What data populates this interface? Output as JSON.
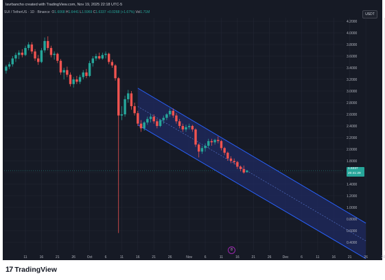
{
  "header": {
    "created_by": "lavrbancho created with TradingView.com, Nov 19, 2025 22:18 UTC-5"
  },
  "legend": {
    "symbol": "SUI / TetherUS · 1D · Binance",
    "open_label": "O",
    "open": "1.6068",
    "high_label": "H",
    "high": "1.6441",
    "low_label": "L",
    "low": "1.5969",
    "close_label": "C",
    "close": "1.6337",
    "change": "+0.0268 (+1.67%)",
    "volume_label": "Vol",
    "volume": "1.71M"
  },
  "currency_button": "USDT",
  "last_price": {
    "price": "1.6337",
    "countdown": "20:41:29"
  },
  "bar_marker": "8",
  "branding": {
    "logo_mark": "17",
    "logo_text": "TradingView"
  },
  "colors": {
    "up": "#26a69a",
    "down": "#ef5350",
    "channel_fill": "#1f2a60",
    "channel_line": "#2962ff",
    "background": "#161a25"
  },
  "chart_data": {
    "type": "candlestick",
    "pair": "SUI/USDT",
    "interval": "1D",
    "ylim": [
      0.3,
      4.3
    ],
    "y_ticks": [
      "4.2000",
      "4.0000",
      "3.8000",
      "3.6000",
      "3.4000",
      "3.2000",
      "3.0000",
      "2.8000",
      "2.6000",
      "2.4000",
      "2.2000",
      "2.0000",
      "1.8000",
      "1.6000",
      "1.4000",
      "1.2000",
      "1.0000",
      "0.8000",
      "0.6000",
      "0.4000"
    ],
    "x_ticks": [
      "11",
      "16",
      "21",
      "26",
      "Oct",
      "6",
      "11",
      "16",
      "21",
      "26",
      "Nov",
      "6",
      "11",
      "16",
      "21",
      "26",
      "Dec",
      "6",
      "11",
      "16",
      "21",
      "26",
      "2026"
    ],
    "x_tick_dates": [
      "2025-09-11",
      "2025-09-16",
      "2025-09-21",
      "2025-09-26",
      "2025-10-01",
      "2025-10-06",
      "2025-10-11",
      "2025-10-16",
      "2025-10-21",
      "2025-10-26",
      "2025-11-01",
      "2025-11-06",
      "2025-11-11",
      "2025-11-16",
      "2025-11-21",
      "2025-11-26",
      "2025-12-01",
      "2025-12-06",
      "2025-12-11",
      "2025-12-16",
      "2025-12-21",
      "2025-12-26",
      "2026-01-01"
    ],
    "candles": [
      {
        "date": "2025-09-05",
        "o": 3.35,
        "h": 3.45,
        "l": 3.3,
        "c": 3.42
      },
      {
        "date": "2025-09-06",
        "o": 3.42,
        "h": 3.5,
        "l": 3.38,
        "c": 3.46
      },
      {
        "date": "2025-09-07",
        "o": 3.46,
        "h": 3.6,
        "l": 3.42,
        "c": 3.56
      },
      {
        "date": "2025-09-08",
        "o": 3.56,
        "h": 3.66,
        "l": 3.5,
        "c": 3.62
      },
      {
        "date": "2025-09-09",
        "o": 3.62,
        "h": 3.7,
        "l": 3.55,
        "c": 3.66
      },
      {
        "date": "2025-09-10",
        "o": 3.66,
        "h": 3.72,
        "l": 3.58,
        "c": 3.62
      },
      {
        "date": "2025-09-11",
        "o": 3.62,
        "h": 3.78,
        "l": 3.6,
        "c": 3.74
      },
      {
        "date": "2025-09-12",
        "o": 3.74,
        "h": 3.84,
        "l": 3.7,
        "c": 3.8
      },
      {
        "date": "2025-09-13",
        "o": 3.8,
        "h": 3.84,
        "l": 3.64,
        "c": 3.68
      },
      {
        "date": "2025-09-14",
        "o": 3.68,
        "h": 3.72,
        "l": 3.52,
        "c": 3.56
      },
      {
        "date": "2025-09-15",
        "o": 3.56,
        "h": 3.62,
        "l": 3.45,
        "c": 3.5
      },
      {
        "date": "2025-09-16",
        "o": 3.5,
        "h": 3.74,
        "l": 3.48,
        "c": 3.7
      },
      {
        "date": "2025-09-17",
        "o": 3.7,
        "h": 3.92,
        "l": 3.66,
        "c": 3.86
      },
      {
        "date": "2025-09-18",
        "o": 3.86,
        "h": 3.94,
        "l": 3.7,
        "c": 3.74
      },
      {
        "date": "2025-09-19",
        "o": 3.74,
        "h": 3.78,
        "l": 3.58,
        "c": 3.62
      },
      {
        "date": "2025-09-20",
        "o": 3.62,
        "h": 3.68,
        "l": 3.54,
        "c": 3.64
      },
      {
        "date": "2025-09-21",
        "o": 3.64,
        "h": 3.66,
        "l": 3.48,
        "c": 3.52
      },
      {
        "date": "2025-09-22",
        "o": 3.52,
        "h": 3.55,
        "l": 3.28,
        "c": 3.32
      },
      {
        "date": "2025-09-23",
        "o": 3.32,
        "h": 3.4,
        "l": 3.2,
        "c": 3.36
      },
      {
        "date": "2025-09-24",
        "o": 3.36,
        "h": 3.42,
        "l": 3.24,
        "c": 3.28
      },
      {
        "date": "2025-09-25",
        "o": 3.28,
        "h": 3.32,
        "l": 3.08,
        "c": 3.12
      },
      {
        "date": "2025-09-26",
        "o": 3.12,
        "h": 3.24,
        "l": 3.06,
        "c": 3.2
      },
      {
        "date": "2025-09-27",
        "o": 3.2,
        "h": 3.26,
        "l": 3.12,
        "c": 3.16
      },
      {
        "date": "2025-09-28",
        "o": 3.16,
        "h": 3.28,
        "l": 3.12,
        "c": 3.24
      },
      {
        "date": "2025-09-29",
        "o": 3.24,
        "h": 3.36,
        "l": 3.2,
        "c": 3.32
      },
      {
        "date": "2025-09-30",
        "o": 3.32,
        "h": 3.38,
        "l": 3.22,
        "c": 3.26
      },
      {
        "date": "2025-10-01",
        "o": 3.26,
        "h": 3.52,
        "l": 3.24,
        "c": 3.48
      },
      {
        "date": "2025-10-02",
        "o": 3.48,
        "h": 3.6,
        "l": 3.42,
        "c": 3.56
      },
      {
        "date": "2025-10-03",
        "o": 3.56,
        "h": 3.64,
        "l": 3.52,
        "c": 3.6
      },
      {
        "date": "2025-10-04",
        "o": 3.6,
        "h": 3.66,
        "l": 3.54,
        "c": 3.56
      },
      {
        "date": "2025-10-05",
        "o": 3.56,
        "h": 3.66,
        "l": 3.54,
        "c": 3.62
      },
      {
        "date": "2025-10-06",
        "o": 3.62,
        "h": 3.68,
        "l": 3.56,
        "c": 3.64
      },
      {
        "date": "2025-10-07",
        "o": 3.64,
        "h": 3.66,
        "l": 3.46,
        "c": 3.5
      },
      {
        "date": "2025-10-08",
        "o": 3.5,
        "h": 3.54,
        "l": 3.4,
        "c": 3.44
      },
      {
        "date": "2025-10-09",
        "o": 3.44,
        "h": 3.46,
        "l": 3.18,
        "c": 3.22
      },
      {
        "date": "2025-10-10",
        "o": 3.22,
        "h": 3.24,
        "l": 0.56,
        "c": 2.58
      },
      {
        "date": "2025-10-11",
        "o": 2.58,
        "h": 2.74,
        "l": 2.5,
        "c": 2.6
      },
      {
        "date": "2025-10-12",
        "o": 2.6,
        "h": 2.92,
        "l": 2.56,
        "c": 2.86
      },
      {
        "date": "2025-10-13",
        "o": 2.86,
        "h": 3.02,
        "l": 2.8,
        "c": 2.96
      },
      {
        "date": "2025-10-14",
        "o": 2.96,
        "h": 3.0,
        "l": 2.68,
        "c": 2.74
      },
      {
        "date": "2025-10-15",
        "o": 2.74,
        "h": 2.8,
        "l": 2.58,
        "c": 2.62
      },
      {
        "date": "2025-10-16",
        "o": 2.62,
        "h": 2.66,
        "l": 2.4,
        "c": 2.44
      },
      {
        "date": "2025-10-17",
        "o": 2.44,
        "h": 2.5,
        "l": 2.3,
        "c": 2.36
      },
      {
        "date": "2025-10-18",
        "o": 2.36,
        "h": 2.48,
        "l": 2.32,
        "c": 2.46
      },
      {
        "date": "2025-10-19",
        "o": 2.46,
        "h": 2.56,
        "l": 2.42,
        "c": 2.52
      },
      {
        "date": "2025-10-20",
        "o": 2.52,
        "h": 2.6,
        "l": 2.46,
        "c": 2.56
      },
      {
        "date": "2025-10-21",
        "o": 2.56,
        "h": 2.6,
        "l": 2.44,
        "c": 2.48
      },
      {
        "date": "2025-10-22",
        "o": 2.48,
        "h": 2.52,
        "l": 2.36,
        "c": 2.4
      },
      {
        "date": "2025-10-23",
        "o": 2.4,
        "h": 2.52,
        "l": 2.38,
        "c": 2.5
      },
      {
        "date": "2025-10-24",
        "o": 2.5,
        "h": 2.58,
        "l": 2.44,
        "c": 2.54
      },
      {
        "date": "2025-10-25",
        "o": 2.54,
        "h": 2.62,
        "l": 2.5,
        "c": 2.6
      },
      {
        "date": "2025-10-26",
        "o": 2.6,
        "h": 2.7,
        "l": 2.56,
        "c": 2.66
      },
      {
        "date": "2025-10-27",
        "o": 2.66,
        "h": 2.7,
        "l": 2.54,
        "c": 2.58
      },
      {
        "date": "2025-10-28",
        "o": 2.58,
        "h": 2.62,
        "l": 2.44,
        "c": 2.48
      },
      {
        "date": "2025-10-29",
        "o": 2.48,
        "h": 2.52,
        "l": 2.36,
        "c": 2.4
      },
      {
        "date": "2025-10-30",
        "o": 2.4,
        "h": 2.44,
        "l": 2.3,
        "c": 2.34
      },
      {
        "date": "2025-10-31",
        "o": 2.34,
        "h": 2.42,
        "l": 2.3,
        "c": 2.38
      },
      {
        "date": "2025-11-01",
        "o": 2.38,
        "h": 2.44,
        "l": 2.34,
        "c": 2.4
      },
      {
        "date": "2025-11-02",
        "o": 2.4,
        "h": 2.42,
        "l": 2.3,
        "c": 2.34
      },
      {
        "date": "2025-11-03",
        "o": 2.34,
        "h": 2.36,
        "l": 2.04,
        "c": 2.08
      },
      {
        "date": "2025-11-04",
        "o": 2.08,
        "h": 2.1,
        "l": 1.86,
        "c": 1.96
      },
      {
        "date": "2025-11-05",
        "o": 1.96,
        "h": 2.06,
        "l": 1.92,
        "c": 2.02
      },
      {
        "date": "2025-11-06",
        "o": 2.02,
        "h": 2.1,
        "l": 1.96,
        "c": 2.06
      },
      {
        "date": "2025-11-07",
        "o": 2.06,
        "h": 2.18,
        "l": 2.02,
        "c": 2.14
      },
      {
        "date": "2025-11-08",
        "o": 2.14,
        "h": 2.18,
        "l": 2.06,
        "c": 2.12
      },
      {
        "date": "2025-11-09",
        "o": 2.12,
        "h": 2.18,
        "l": 2.08,
        "c": 2.16
      },
      {
        "date": "2025-11-10",
        "o": 2.16,
        "h": 2.22,
        "l": 2.1,
        "c": 2.14
      },
      {
        "date": "2025-11-11",
        "o": 2.14,
        "h": 2.16,
        "l": 1.98,
        "c": 2.02
      },
      {
        "date": "2025-11-12",
        "o": 2.02,
        "h": 2.04,
        "l": 1.9,
        "c": 1.94
      },
      {
        "date": "2025-11-13",
        "o": 1.94,
        "h": 1.96,
        "l": 1.8,
        "c": 1.84
      },
      {
        "date": "2025-11-14",
        "o": 1.84,
        "h": 1.88,
        "l": 1.76,
        "c": 1.8
      },
      {
        "date": "2025-11-15",
        "o": 1.8,
        "h": 1.84,
        "l": 1.74,
        "c": 1.78
      },
      {
        "date": "2025-11-16",
        "o": 1.78,
        "h": 1.8,
        "l": 1.66,
        "c": 1.7
      },
      {
        "date": "2025-11-17",
        "o": 1.7,
        "h": 1.72,
        "l": 1.62,
        "c": 1.66
      },
      {
        "date": "2025-11-18",
        "o": 1.66,
        "h": 1.72,
        "l": 1.58,
        "c": 1.6
      },
      {
        "date": "2025-11-19",
        "o": 1.6068,
        "h": 1.6441,
        "l": 1.5969,
        "c": 1.6337
      }
    ],
    "channel": {
      "upper": [
        {
          "date": "2025-10-16",
          "price": 3.05
        },
        {
          "date": "2025-12-26",
          "price": 0.73
        }
      ],
      "lower": [
        {
          "date": "2025-10-16",
          "price": 2.42
        },
        {
          "date": "2025-12-26",
          "price": 0.12
        }
      ],
      "mid_dashed": true
    },
    "grid": true,
    "price_scale": "right"
  }
}
